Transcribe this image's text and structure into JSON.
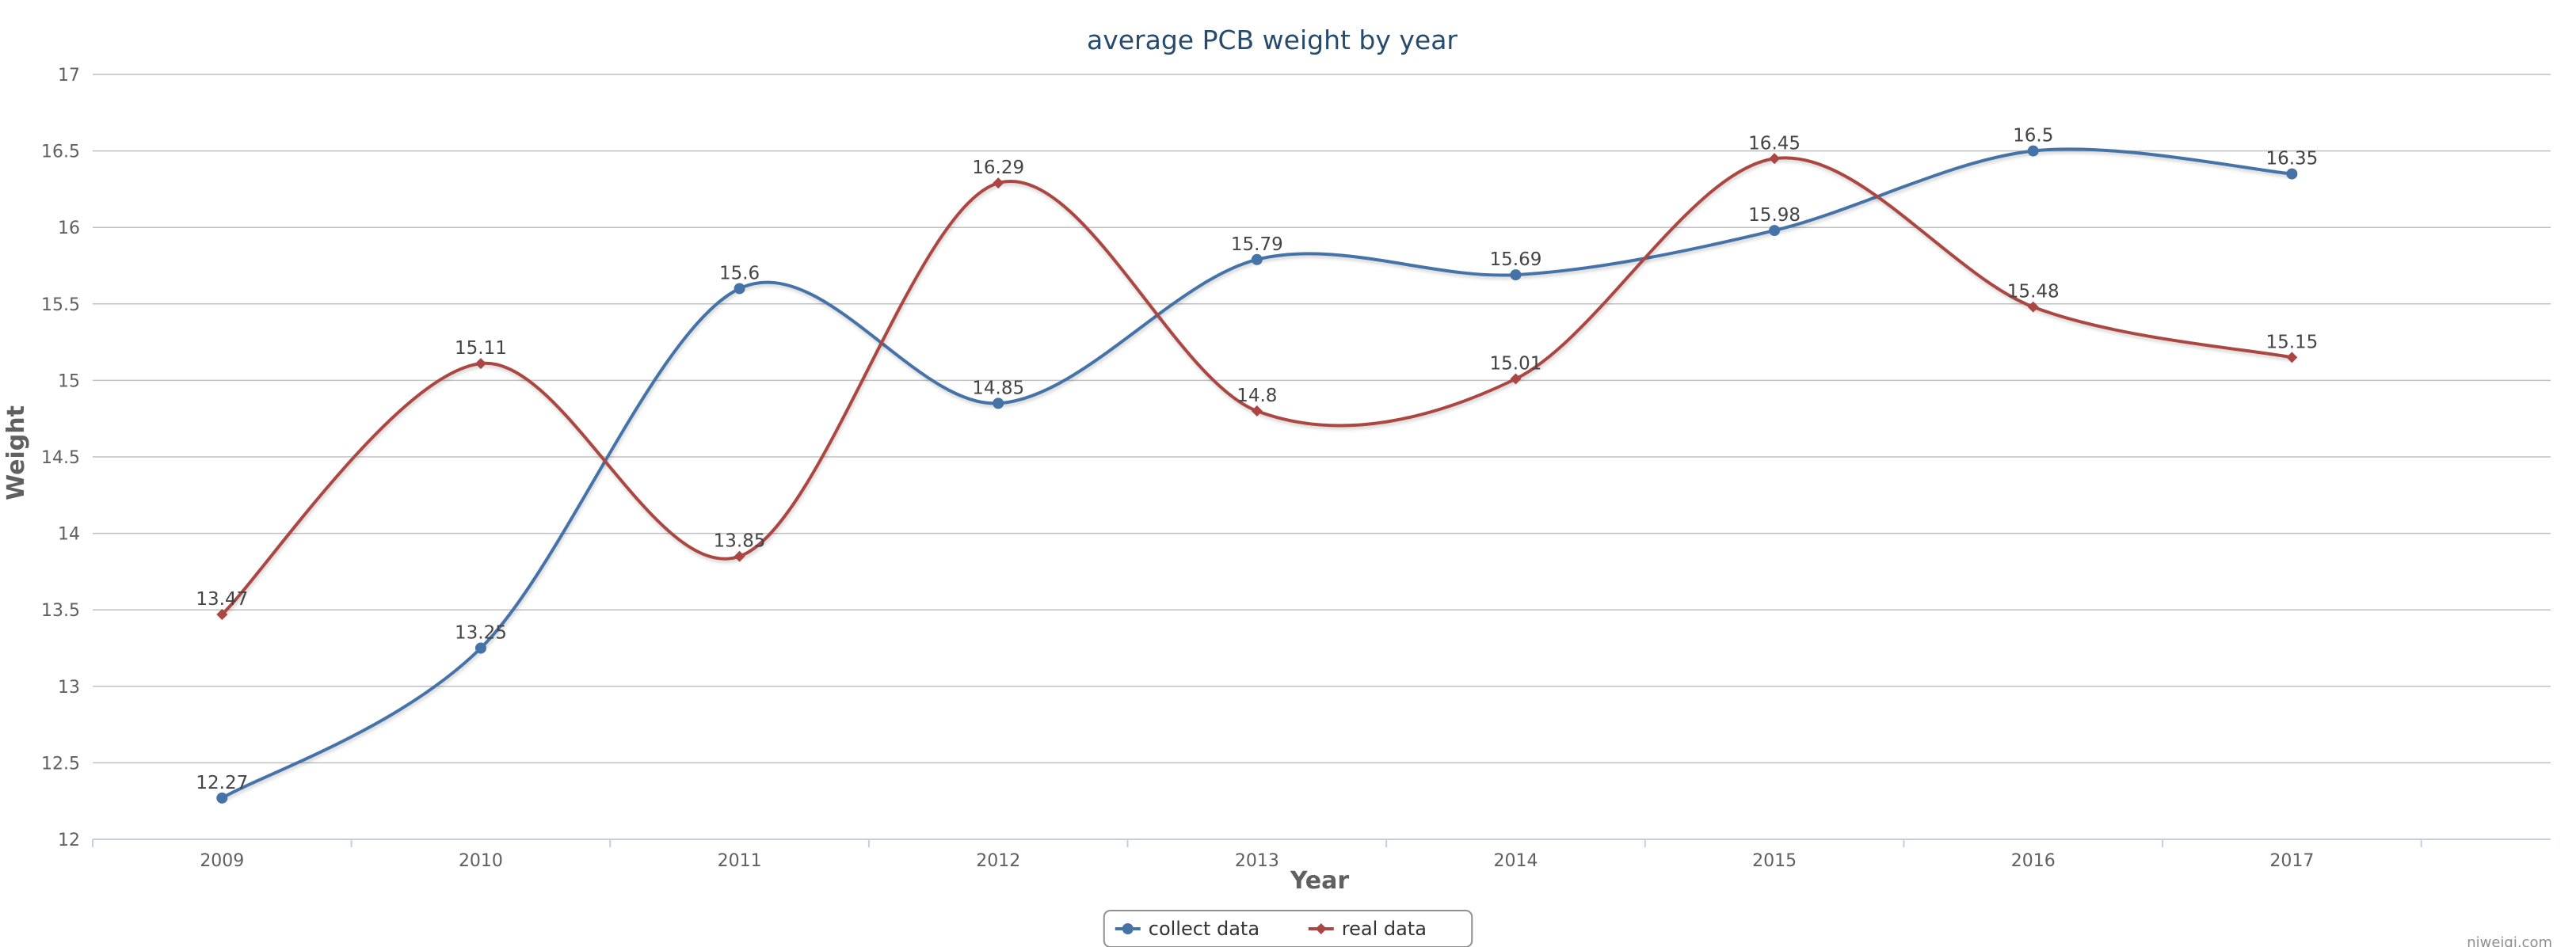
{
  "chart_data": {
    "type": "line",
    "title": "average PCB weight by year",
    "xlabel": "Year",
    "ylabel": "Weight",
    "categories": [
      "2009",
      "2010",
      "2011",
      "2012",
      "2013",
      "2014",
      "2015",
      "2016",
      "2017"
    ],
    "ylim": [
      12,
      17
    ],
    "yticks": [
      12,
      12.5,
      13,
      13.5,
      14,
      14.5,
      15,
      15.5,
      16,
      16.5,
      17
    ],
    "grid": true,
    "smooth": true,
    "data_labels": true,
    "legend_position": "bottom-center",
    "series": [
      {
        "name": "collect data",
        "color": "#4572A7",
        "marker": "circle",
        "values": [
          12.27,
          13.25,
          15.6,
          14.85,
          15.79,
          15.69,
          15.98,
          16.5,
          16.35
        ]
      },
      {
        "name": "real data",
        "color": "#AA4643",
        "marker": "diamond",
        "values": [
          13.47,
          15.11,
          13.85,
          16.29,
          14.8,
          15.01,
          16.45,
          15.48,
          15.15
        ]
      }
    ],
    "credit": "niweiqi.com"
  }
}
